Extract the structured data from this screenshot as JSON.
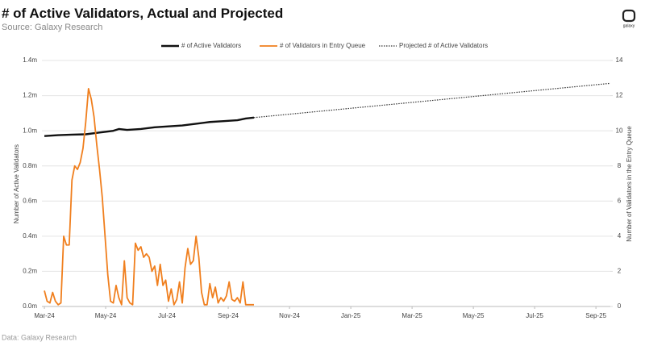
{
  "chart_data": {
    "type": "line",
    "title": "# of Active Validators, Actual and Projected",
    "subtitle": "Source: Galaxy Research",
    "footer": "Data: Galaxy Research",
    "logo": "galaxy",
    "ylabel": "Number of Active Validators",
    "y2label": "Number of Validators in the Entry Queue",
    "xlim": [
      -0.08,
      18.47
    ],
    "xticks": [
      {
        "value": 0,
        "label": "Mar-24"
      },
      {
        "value": 2,
        "label": "May-24"
      },
      {
        "value": 4,
        "label": "Jul-24"
      },
      {
        "value": 6,
        "label": "Sep-24"
      },
      {
        "value": 8,
        "label": "Nov-24"
      },
      {
        "value": 10,
        "label": "Jan-25"
      },
      {
        "value": 12,
        "label": "Mar-25"
      },
      {
        "value": 14,
        "label": "May-25"
      },
      {
        "value": 16,
        "label": "Jul-25"
      },
      {
        "value": 18,
        "label": "Sep-25"
      }
    ],
    "ylim": [
      0,
      1.4
    ],
    "yticks": [
      {
        "value": 0,
        "label": "0.0m"
      },
      {
        "value": 0.2,
        "label": "0.2m"
      },
      {
        "value": 0.4,
        "label": "0.4m"
      },
      {
        "value": 0.6,
        "label": "0.6m"
      },
      {
        "value": 0.8,
        "label": "0.8m"
      },
      {
        "value": 1.0,
        "label": "1.0m"
      },
      {
        "value": 1.2,
        "label": "1.2m"
      },
      {
        "value": 1.4,
        "label": "1.4m"
      }
    ],
    "y2lim": [
      0,
      14
    ],
    "y2ticks": [
      0,
      2,
      4,
      6,
      8,
      10,
      12,
      14
    ],
    "grid": true,
    "legend": "top",
    "series": [
      {
        "name": "# of Active Validators",
        "color": "#111111",
        "axis": "y",
        "dash": "solid",
        "x": [
          0,
          0.45,
          0.9,
          1.35,
          1.8,
          2.25,
          2.43,
          2.7,
          3.15,
          3.6,
          4.05,
          4.5,
          4.95,
          5.4,
          5.85,
          6.3,
          6.57,
          6.84
        ],
        "values": [
          0.97,
          0.975,
          0.978,
          0.98,
          0.99,
          1.0,
          1.01,
          1.005,
          1.01,
          1.02,
          1.025,
          1.03,
          1.04,
          1.05,
          1.055,
          1.06,
          1.07,
          1.075
        ]
      },
      {
        "name": "# of Validators in Entry Queue",
        "color": "#f07f1e",
        "axis": "y2",
        "dash": "solid",
        "x": [
          0,
          0.09,
          0.18,
          0.27,
          0.36,
          0.45,
          0.54,
          0.63,
          0.72,
          0.81,
          0.9,
          0.99,
          1.08,
          1.17,
          1.26,
          1.35,
          1.44,
          1.53,
          1.62,
          1.71,
          1.8,
          1.89,
          1.98,
          2.07,
          2.16,
          2.25,
          2.34,
          2.43,
          2.52,
          2.61,
          2.7,
          2.79,
          2.88,
          2.97,
          3.06,
          3.15,
          3.24,
          3.33,
          3.42,
          3.51,
          3.6,
          3.69,
          3.78,
          3.87,
          3.96,
          4.05,
          4.14,
          4.23,
          4.32,
          4.41,
          4.5,
          4.59,
          4.68,
          4.77,
          4.86,
          4.95,
          5.04,
          5.13,
          5.22,
          5.31,
          5.4,
          5.49,
          5.58,
          5.67,
          5.76,
          5.85,
          5.94,
          6.03,
          6.12,
          6.21,
          6.3,
          6.39,
          6.48,
          6.57,
          6.66,
          6.75,
          6.84
        ],
        "values": [
          0.9,
          0.3,
          0.2,
          0.8,
          0.3,
          0.1,
          0.2,
          4.0,
          3.5,
          3.5,
          7.2,
          8.0,
          7.8,
          8.2,
          9.0,
          10.5,
          12.4,
          11.8,
          10.8,
          9.2,
          7.8,
          6.2,
          4.0,
          1.8,
          0.3,
          0.2,
          1.2,
          0.5,
          0.1,
          2.6,
          0.5,
          0.2,
          0.1,
          3.6,
          3.2,
          3.4,
          2.8,
          3.0,
          2.8,
          2.0,
          2.3,
          1.2,
          2.4,
          1.2,
          1.5,
          0.3,
          1.0,
          0.1,
          0.4,
          1.4,
          0.2,
          2.2,
          3.3,
          2.4,
          2.6,
          4.0,
          2.8,
          0.8,
          0.1,
          0.1,
          1.3,
          0.5,
          1.1,
          0.2,
          0.5,
          0.3,
          0.6,
          1.4,
          0.4,
          0.3,
          0.5,
          0.2,
          1.4,
          0.1,
          0.1,
          0.1,
          0.1
        ]
      },
      {
        "name": "Projected # of Active Validators",
        "color": "#333333",
        "axis": "y",
        "dash": "dotted",
        "x": [
          6.84,
          18.47
        ],
        "values": [
          1.075,
          1.27
        ]
      }
    ]
  }
}
